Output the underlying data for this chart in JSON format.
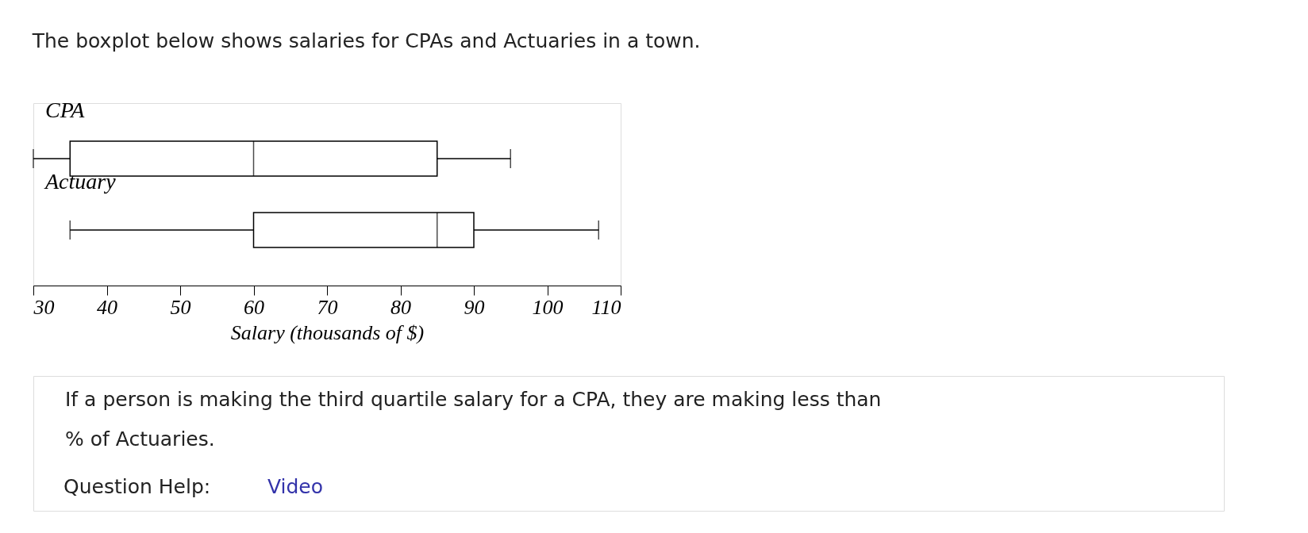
{
  "chart_data": {
    "type": "box",
    "orientation": "horizontal",
    "title": "The boxplot below shows salaries for CPAs and Actuaries in a town.",
    "categories": [
      "CPA",
      "Actuary"
    ],
    "boxes": [
      {
        "low": 30,
        "q1": 35,
        "median": 60,
        "q3": 85,
        "high": 95
      },
      {
        "low": 35,
        "q1": 60,
        "median": 85,
        "q3": 90,
        "high": 107
      }
    ],
    "xlabel": "Salary (thousands of $)",
    "xlim": [
      30,
      110
    ],
    "xticks": [
      30,
      40,
      50,
      60,
      70,
      80,
      90,
      100,
      110
    ],
    "annotations": [
      "If a person is making the third quartile salary for a CPA, they are making less than",
      "% of Actuaries.",
      "Question Help:",
      "Video"
    ]
  }
}
